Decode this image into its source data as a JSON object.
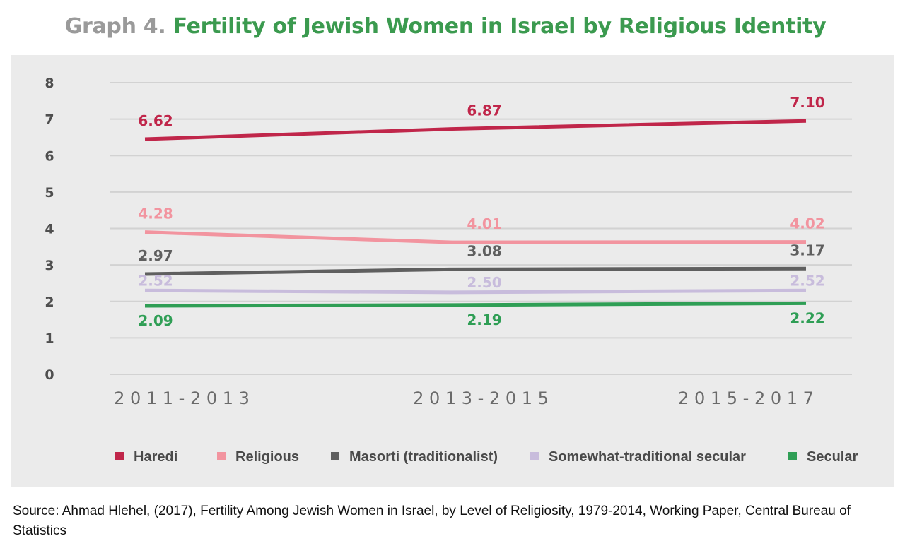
{
  "title": {
    "prefix": "Graph 4.",
    "main": "Fertility of Jewish Women in Israel by Religious Identity"
  },
  "source": "Source: Ahmad Hlehel, (2017), Fertility Among Jewish Women in Israel, by Level of Religiosity, 1979-2014, Working Paper, Central Bureau of Statistics",
  "chart_data": {
    "type": "line",
    "title": "Fertility of Jewish Women in Israel by Religious Identity",
    "xlabel": "",
    "ylabel": "",
    "categories": [
      "2011-2013",
      "2013-2015",
      "2015-2017"
    ],
    "category_labels": [
      "2 0 1 1 - 2 0 1 3",
      "2 0 1 3 - 2 0 1 5",
      "2 0 1 5 - 2 0 1 7"
    ],
    "ylim": [
      0,
      8
    ],
    "yticks": [
      0,
      1,
      2,
      3,
      4,
      5,
      6,
      7,
      8
    ],
    "grid": true,
    "legend_position": "bottom",
    "series": [
      {
        "name": "Haredi",
        "color": "#c0264a",
        "values": [
          6.62,
          6.87,
          7.1
        ],
        "labels": [
          "6.62",
          "6.87",
          "7.10"
        ],
        "plot_values": [
          6.45,
          6.73,
          6.95
        ],
        "label_position": "above"
      },
      {
        "name": "Religious",
        "color": "#f2949f",
        "values": [
          4.28,
          4.01,
          4.02
        ],
        "labels": [
          "4.28",
          "4.01",
          "4.02"
        ],
        "plot_values": [
          3.9,
          3.62,
          3.63
        ],
        "label_position": "above"
      },
      {
        "name": "Masorti (traditionalist)",
        "color": "#5f5f5f",
        "values": [
          2.97,
          3.08,
          3.17
        ],
        "labels": [
          "2.97",
          "3.08",
          "3.17"
        ],
        "plot_values": [
          2.75,
          2.88,
          2.9
        ],
        "label_position": "above"
      },
      {
        "name": "Somewhat-traditional secular",
        "color": "#c8bcdc",
        "values": [
          2.52,
          2.5,
          2.52
        ],
        "labels": [
          "2.52",
          "2.50",
          "2.52"
        ],
        "plot_values": [
          2.3,
          2.25,
          2.3
        ],
        "label_position": "on"
      },
      {
        "name": "Secular",
        "color": "#2f9e55",
        "values": [
          2.09,
          2.19,
          2.22
        ],
        "labels": [
          "2.09",
          "2.19",
          "2.22"
        ],
        "plot_values": [
          1.88,
          1.9,
          1.95
        ],
        "label_position": "below"
      }
    ]
  }
}
